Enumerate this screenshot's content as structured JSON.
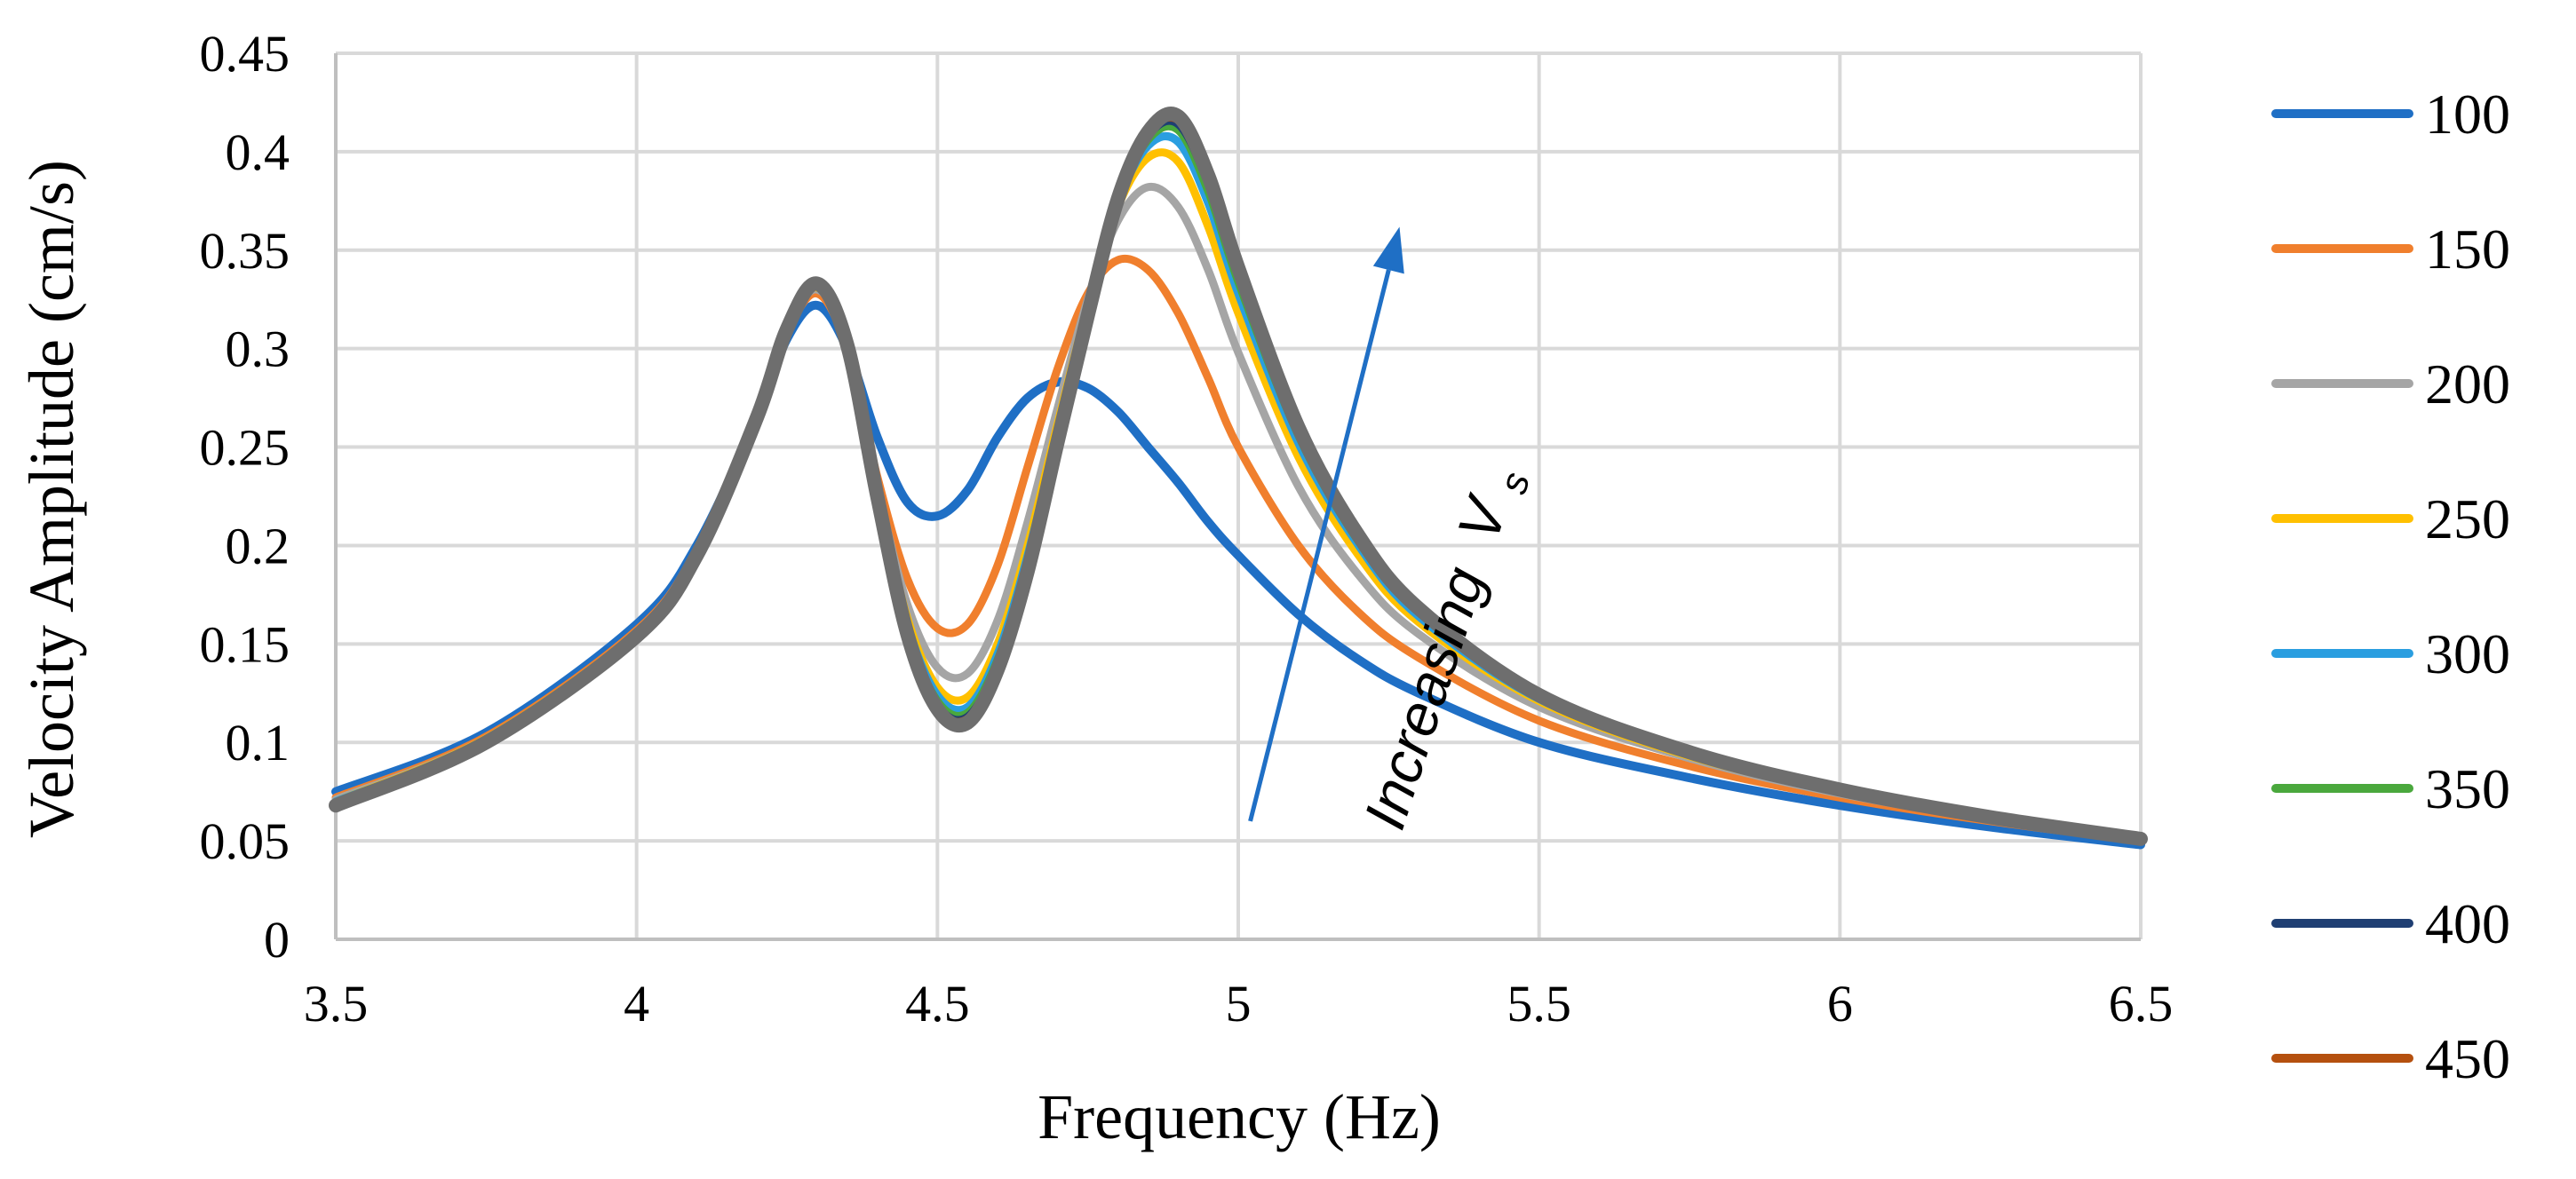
{
  "chart_data": {
    "type": "line",
    "title": "",
    "xlabel": "Frequency (Hz)",
    "ylabel": "Velocity Amplitude (cm/s)",
    "xlim": [
      3.5,
      6.5
    ],
    "ylim": [
      0,
      0.45
    ],
    "xticks": [
      "3.5",
      "4",
      "4.5",
      "5",
      "5.5",
      "6",
      "6.5"
    ],
    "yticks": [
      "0",
      "0.05",
      "0.1",
      "0.15",
      "0.2",
      "0.25",
      "0.3",
      "0.35",
      "0.4",
      "0.45"
    ],
    "grid": true,
    "legend_position": "right",
    "x": [
      3.5,
      3.75,
      4.0,
      4.1,
      4.2,
      4.25,
      4.3,
      4.35,
      4.4,
      4.45,
      4.5,
      4.55,
      4.6,
      4.65,
      4.7,
      4.75,
      4.8,
      4.85,
      4.9,
      4.95,
      5.0,
      5.1,
      5.2,
      5.3,
      5.5,
      5.75,
      6.0,
      6.25,
      6.5
    ],
    "series": [
      {
        "name": "100",
        "color": "#1f6fc5",
        "values": [
          0.075,
          0.105,
          0.16,
          0.2,
          0.265,
          0.305,
          0.322,
          0.3,
          0.255,
          0.222,
          0.215,
          0.228,
          0.255,
          0.275,
          0.283,
          0.28,
          0.268,
          0.25,
          0.232,
          0.212,
          0.195,
          0.165,
          0.142,
          0.125,
          0.1,
          0.082,
          0.068,
          0.057,
          0.048
        ]
      },
      {
        "name": "150",
        "color": "#f07f2d",
        "values": [
          0.072,
          0.103,
          0.157,
          0.198,
          0.265,
          0.308,
          0.328,
          0.3,
          0.235,
          0.183,
          0.158,
          0.16,
          0.19,
          0.24,
          0.29,
          0.328,
          0.345,
          0.34,
          0.318,
          0.285,
          0.25,
          0.2,
          0.166,
          0.143,
          0.111,
          0.088,
          0.072,
          0.06,
          0.05
        ]
      },
      {
        "name": "200",
        "color": "#a5a5a5",
        "values": [
          0.071,
          0.102,
          0.156,
          0.197,
          0.265,
          0.309,
          0.33,
          0.302,
          0.23,
          0.17,
          0.138,
          0.135,
          0.162,
          0.212,
          0.27,
          0.325,
          0.365,
          0.382,
          0.372,
          0.34,
          0.298,
          0.23,
          0.185,
          0.155,
          0.118,
          0.092,
          0.074,
          0.061,
          0.051
        ]
      },
      {
        "name": "250",
        "color": "#ffc000",
        "values": [
          0.07,
          0.102,
          0.156,
          0.197,
          0.265,
          0.31,
          0.331,
          0.302,
          0.228,
          0.163,
          0.128,
          0.123,
          0.15,
          0.2,
          0.262,
          0.322,
          0.372,
          0.397,
          0.395,
          0.362,
          0.318,
          0.245,
          0.195,
          0.161,
          0.121,
          0.093,
          0.075,
          0.062,
          0.051
        ]
      },
      {
        "name": "300",
        "color": "#2a9ee0",
        "values": [
          0.07,
          0.101,
          0.155,
          0.196,
          0.265,
          0.31,
          0.332,
          0.302,
          0.227,
          0.16,
          0.124,
          0.118,
          0.145,
          0.195,
          0.258,
          0.32,
          0.374,
          0.403,
          0.405,
          0.374,
          0.328,
          0.252,
          0.2,
          0.164,
          0.122,
          0.094,
          0.075,
          0.062,
          0.051
        ]
      },
      {
        "name": "350",
        "color": "#4aa83d",
        "values": [
          0.069,
          0.101,
          0.155,
          0.196,
          0.265,
          0.31,
          0.332,
          0.302,
          0.226,
          0.158,
          0.121,
          0.115,
          0.142,
          0.192,
          0.256,
          0.319,
          0.375,
          0.406,
          0.411,
          0.38,
          0.334,
          0.256,
          0.202,
          0.166,
          0.123,
          0.094,
          0.076,
          0.062,
          0.051
        ]
      },
      {
        "name": "400",
        "color": "#1f3f73",
        "values": [
          0.069,
          0.101,
          0.155,
          0.196,
          0.265,
          0.31,
          0.333,
          0.302,
          0.226,
          0.157,
          0.119,
          0.113,
          0.14,
          0.19,
          0.255,
          0.318,
          0.375,
          0.408,
          0.414,
          0.384,
          0.337,
          0.258,
          0.203,
          0.167,
          0.123,
          0.095,
          0.076,
          0.062,
          0.051
        ]
      },
      {
        "name": "450",
        "color": "#b5500f",
        "values": [
          0.069,
          0.101,
          0.155,
          0.196,
          0.265,
          0.31,
          0.333,
          0.302,
          0.225,
          0.156,
          0.118,
          0.112,
          0.139,
          0.189,
          0.254,
          0.318,
          0.376,
          0.409,
          0.416,
          0.386,
          0.339,
          0.259,
          0.204,
          0.167,
          0.123,
          0.095,
          0.076,
          0.062,
          0.051
        ]
      },
      {
        "name": "",
        "color": "#6e6e6e",
        "values": [
          0.068,
          0.1,
          0.154,
          0.195,
          0.265,
          0.31,
          0.333,
          0.302,
          0.225,
          0.155,
          0.117,
          0.11,
          0.137,
          0.187,
          0.253,
          0.317,
          0.376,
          0.41,
          0.418,
          0.388,
          0.341,
          0.26,
          0.205,
          0.168,
          0.124,
          0.095,
          0.076,
          0.062,
          0.051
        ]
      }
    ],
    "annotations": [
      {
        "type": "arrow",
        "color": "#1f6fc5",
        "from": [
          5.02,
          0.06
        ],
        "to": [
          5.25,
          0.34
        ]
      },
      {
        "type": "text",
        "text": "Increasing",
        "subscript_label": "V",
        "subscript": "s"
      }
    ]
  }
}
